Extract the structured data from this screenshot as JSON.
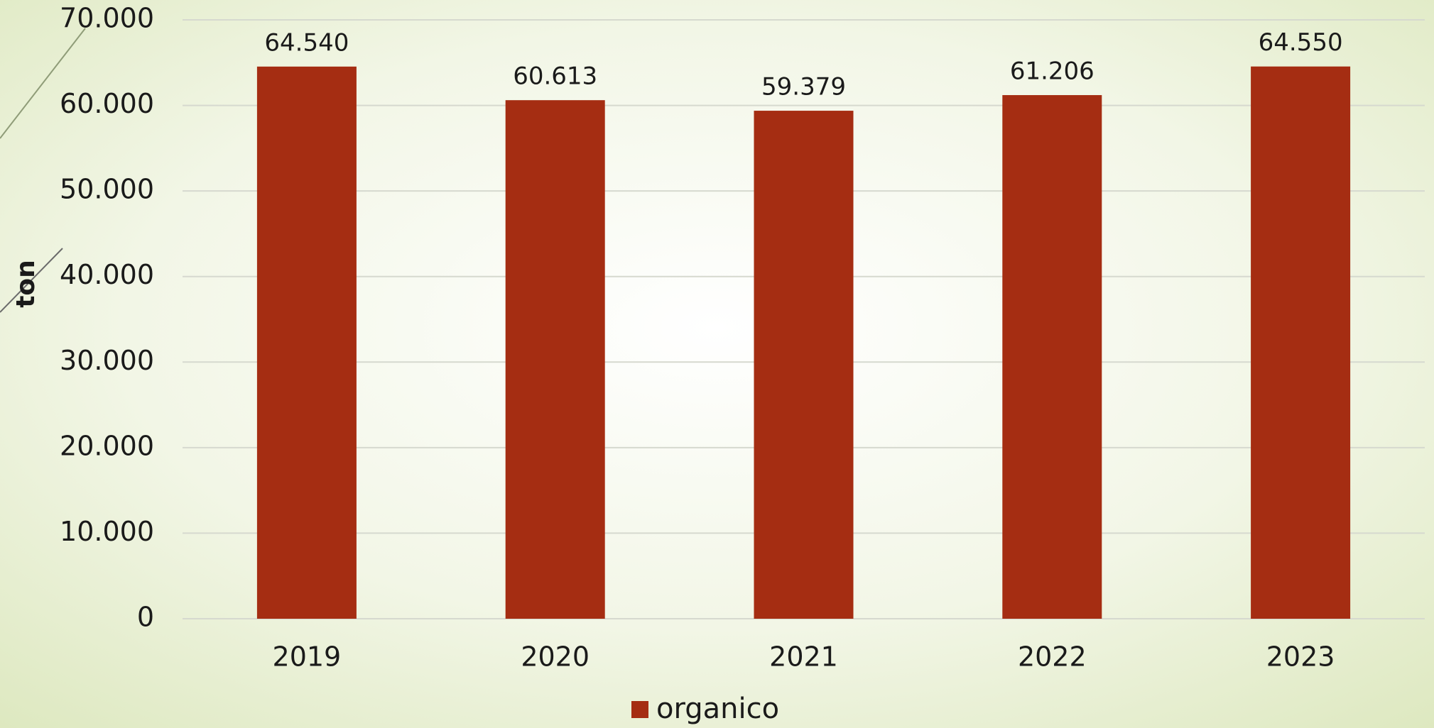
{
  "chart_data": {
    "type": "bar",
    "y_label": "ton",
    "categories": [
      "2019",
      "2020",
      "2021",
      "2022",
      "2023"
    ],
    "series": [
      {
        "name": "organico",
        "color": "#a52d12",
        "values": [
          64540,
          60613,
          59379,
          61206,
          64550
        ],
        "value_labels": [
          "64.540",
          "60.613",
          "59.379",
          "61.206",
          "64.550"
        ]
      }
    ],
    "ylim": [
      0,
      70000
    ],
    "yticks": [
      0,
      {
        "value": 10000,
        "label": "10.000"
      },
      {
        "value": 20000,
        "label": "20.000"
      },
      {
        "value": 30000,
        "label": "30.000"
      },
      {
        "value": 40000,
        "label": "40.000"
      },
      {
        "value": 50000,
        "label": "50.000"
      },
      {
        "value": 60000,
        "label": "60.000"
      },
      {
        "value": 70000,
        "label": "70.000"
      }
    ],
    "grid": true,
    "legend": "bottom"
  }
}
